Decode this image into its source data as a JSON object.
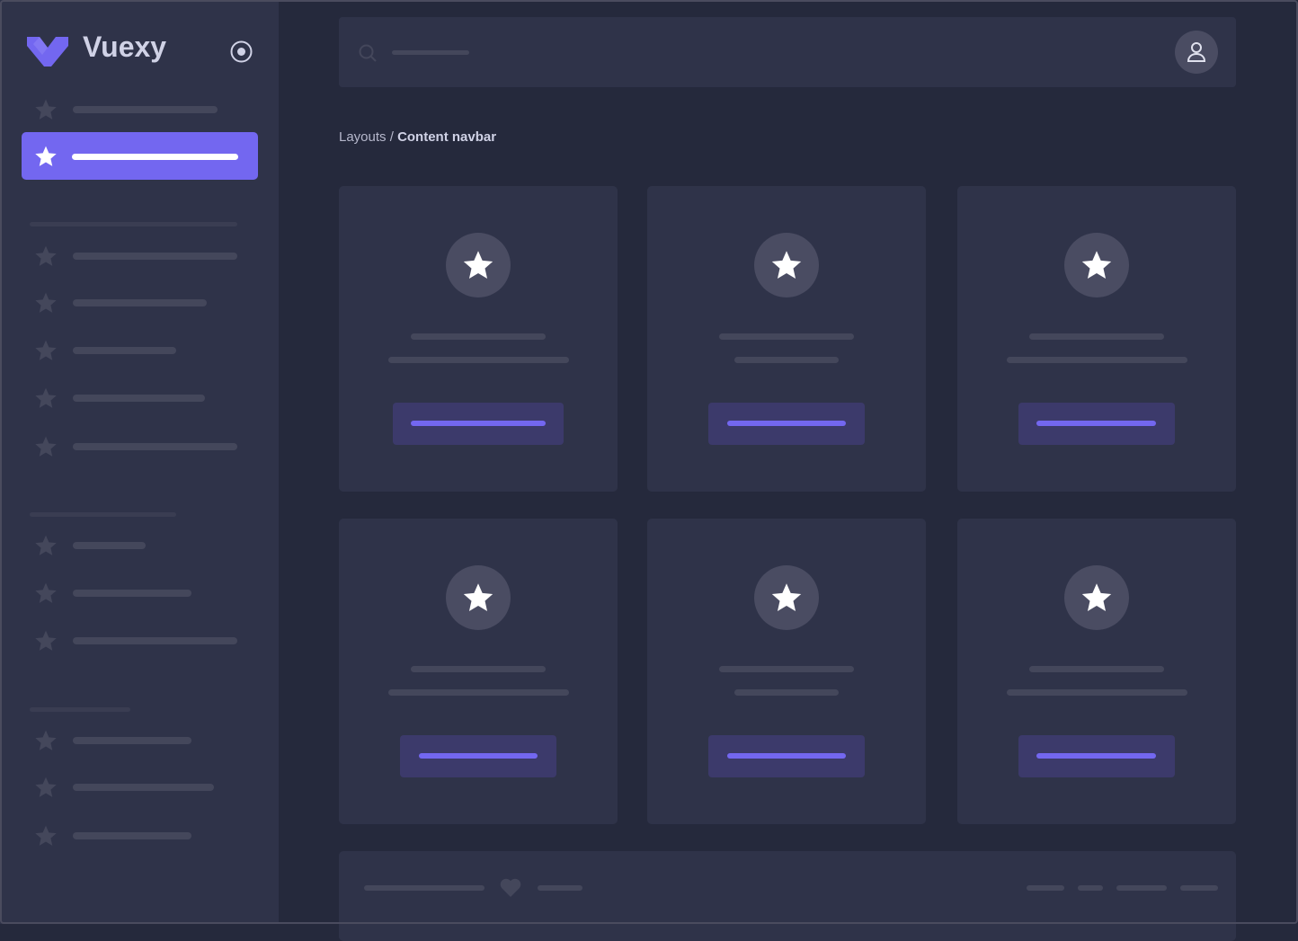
{
  "brand": {
    "name": "Vuexy",
    "accent": "#7367f0"
  },
  "sidebar": {
    "toggle_icon": "radio-circle-icon",
    "item_icon": "star-icon",
    "active_index": 1
  },
  "header": {
    "search_icon": "search-icon",
    "avatar_icon": "user-icon"
  },
  "breadcrumb": {
    "parent": "Layouts",
    "separator": " / ",
    "current": "Content navbar"
  },
  "cards": {
    "icon": "star-icon",
    "count": 6
  },
  "footer": {
    "icon": "heart-icon"
  }
}
